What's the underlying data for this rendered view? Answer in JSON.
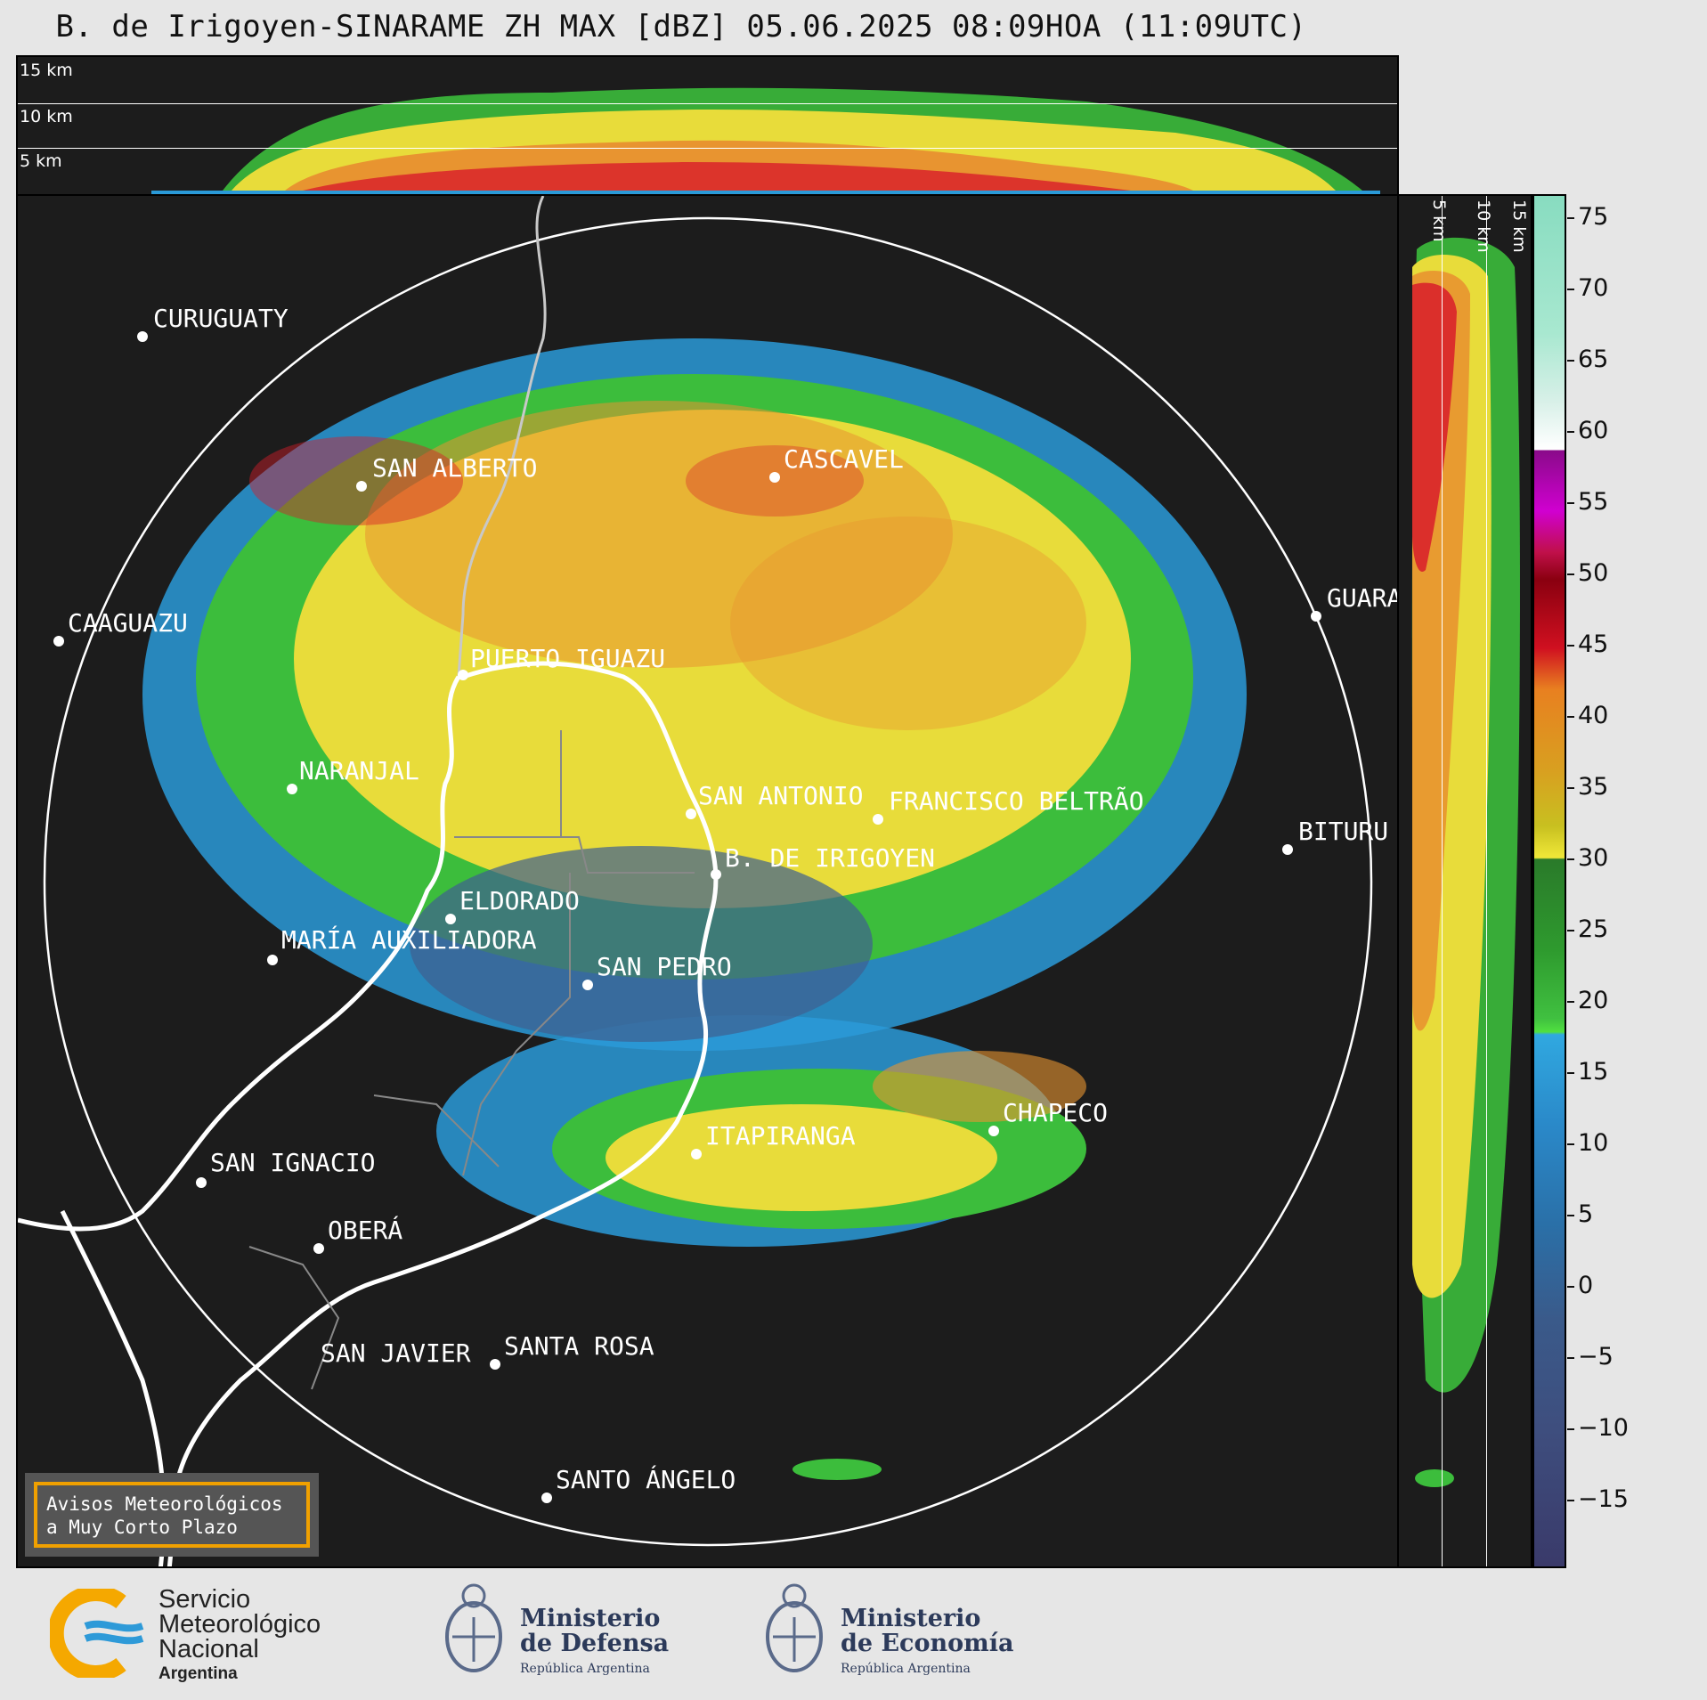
{
  "title": "B. de Irigoyen-SINARAME ZH MAX [dBZ] 05.06.2025 08:09HOA (11:09UTC)",
  "top_panel": {
    "height_labels": [
      "15 km",
      "10 km",
      "5 km"
    ]
  },
  "side_panel": {
    "height_labels": [
      "5 km",
      "10 km",
      "15 km"
    ]
  },
  "colorbar": {
    "unit": "dBZ",
    "ticks": [
      "75",
      "70",
      "65",
      "60",
      "55",
      "50",
      "45",
      "40",
      "35",
      "30",
      "25",
      "20",
      "15",
      "10",
      "5",
      "0",
      "−5",
      "−10",
      "−15"
    ]
  },
  "cities": [
    {
      "name": "CURUGUATY"
    },
    {
      "name": "SAN ALBERTO"
    },
    {
      "name": "CASCAVEL"
    },
    {
      "name": "CAAGUAZU"
    },
    {
      "name": "GUARA"
    },
    {
      "name": "PUERTO IGUAZU"
    },
    {
      "name": "NARANJAL"
    },
    {
      "name": "SAN ANTONIO"
    },
    {
      "name": "FRANCISCO BELTRÃO"
    },
    {
      "name": "BITURU"
    },
    {
      "name": "B. DE IRIGOYEN"
    },
    {
      "name": "ELDORADO"
    },
    {
      "name": "MARÍA AUXILIADORA"
    },
    {
      "name": "SAN PEDRO"
    },
    {
      "name": "CHAPECO"
    },
    {
      "name": "ITAPIRANGA"
    },
    {
      "name": "SAN IGNACIO"
    },
    {
      "name": "OBERÁ"
    },
    {
      "name": "SAN JAVIER"
    },
    {
      "name": "SANTA ROSA"
    },
    {
      "name": "SANTO ÁNGELO"
    }
  ],
  "notice": {
    "line1": "Avisos Meteorológicos",
    "line2": "a Muy Corto Plazo"
  },
  "footer": {
    "smn": {
      "line1": "Servicio",
      "line2": "Meteorológico",
      "line3": "Nacional",
      "line4": "Argentina"
    },
    "defensa": {
      "line1": "Ministerio",
      "line2": "de Defensa",
      "line3": "República Argentina"
    },
    "economia": {
      "line1": "Ministerio",
      "line2": "de Economía",
      "line3": "República Argentina"
    }
  }
}
